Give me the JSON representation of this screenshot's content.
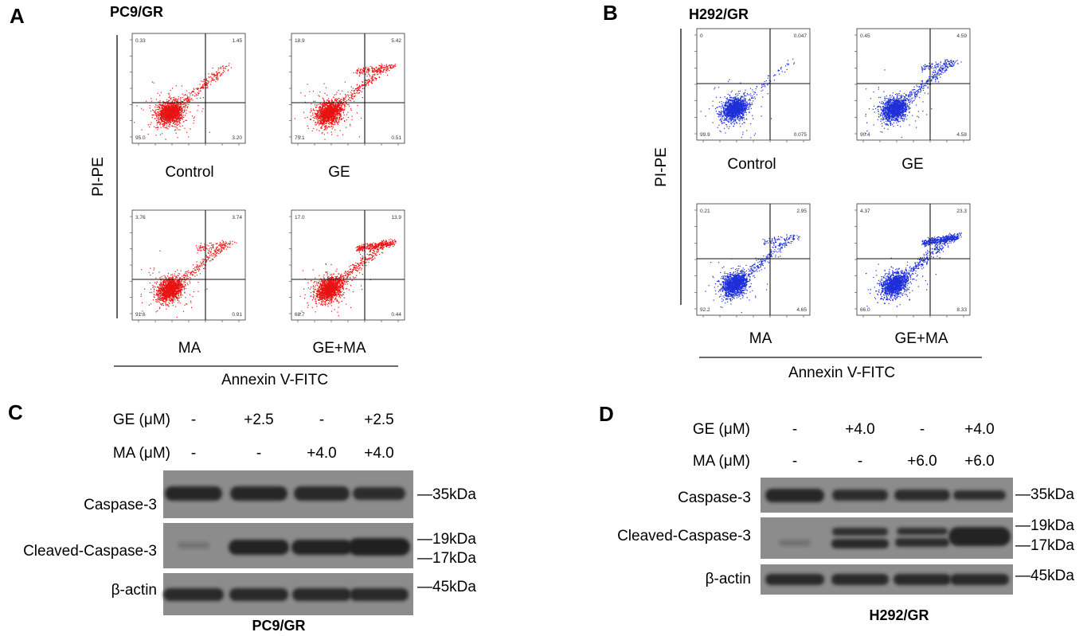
{
  "colors": {
    "panel_a_dots": "#e81212",
    "panel_b_dots": "#1d2fd8",
    "blot_bg": "#8c8c8c",
    "band": "#1c1c1c"
  },
  "panels": {
    "A": {
      "letter": "A",
      "cell_line": "PC9/GR",
      "y_axis": "PI-PE",
      "x_axis": "Annexin V-FITC",
      "plots": [
        {
          "condition": "Control",
          "quadrants": {
            "ul": "0.33",
            "ur": "1.45",
            "ll": "95.0",
            "lr": "3.20"
          }
        },
        {
          "condition": "GE",
          "quadrants": {
            "ul": "18.9",
            "ur": "5.42",
            "ll": "75.1",
            "lr": "0.51"
          }
        },
        {
          "condition": "MA",
          "quadrants": {
            "ul": "3.76",
            "ur": "3.74",
            "ll": "91.6",
            "lr": "0.91"
          }
        },
        {
          "condition": "GE+MA",
          "quadrants": {
            "ul": "17.0",
            "ur": "13.9",
            "ll": "68.7",
            "lr": "0.44"
          }
        }
      ]
    },
    "B": {
      "letter": "B",
      "cell_line": "H292/GR",
      "y_axis": "PI-PE",
      "x_axis": "Annexin V-FITC",
      "plots": [
        {
          "condition": "Control",
          "quadrants": {
            "ul": "0",
            "ur": "0.047",
            "ll": "99.9",
            "lr": "0.075"
          }
        },
        {
          "condition": "GE",
          "quadrants": {
            "ul": "0.45",
            "ur": "4.59",
            "ll": "90.4",
            "lr": "4.58"
          }
        },
        {
          "condition": "MA",
          "quadrants": {
            "ul": "0.21",
            "ur": "2.95",
            "ll": "92.2",
            "lr": "4.65"
          }
        },
        {
          "condition": "GE+MA",
          "quadrants": {
            "ul": "4.37",
            "ur": "23.3",
            "ll": "66.0",
            "lr": "8.33"
          }
        }
      ]
    },
    "C": {
      "letter": "C",
      "cell_line": "PC9/GR",
      "treatments": [
        {
          "label": "GE  (μM)",
          "values": [
            "-",
            "+2.5",
            "-",
            "+2.5"
          ]
        },
        {
          "label": "MA (μM)",
          "values": [
            "-",
            "-",
            "+4.0",
            "+4.0"
          ]
        }
      ],
      "blots": [
        {
          "protein": "Caspase-3",
          "markers": [
            "—35kDa"
          ]
        },
        {
          "protein": "Cleaved-Caspase-3",
          "markers": [
            "—19kDa",
            "—17kDa"
          ]
        },
        {
          "protein": "β-actin",
          "markers": [
            "—45kDa"
          ]
        }
      ]
    },
    "D": {
      "letter": "D",
      "cell_line": "H292/GR",
      "treatments": [
        {
          "label": "GE  (μM)",
          "values": [
            "-",
            "+4.0",
            "-",
            "+4.0"
          ]
        },
        {
          "label": "MA (μM)",
          "values": [
            "-",
            "-",
            "+6.0",
            "+6.0"
          ]
        }
      ],
      "blots": [
        {
          "protein": "Caspase-3",
          "markers": [
            "—35kDa"
          ]
        },
        {
          "protein": "Cleaved-Caspase-3",
          "markers": [
            "—19kDa",
            "—17kDa"
          ]
        },
        {
          "protein": "β-actin",
          "markers": [
            "—45kDa"
          ]
        }
      ]
    }
  }
}
